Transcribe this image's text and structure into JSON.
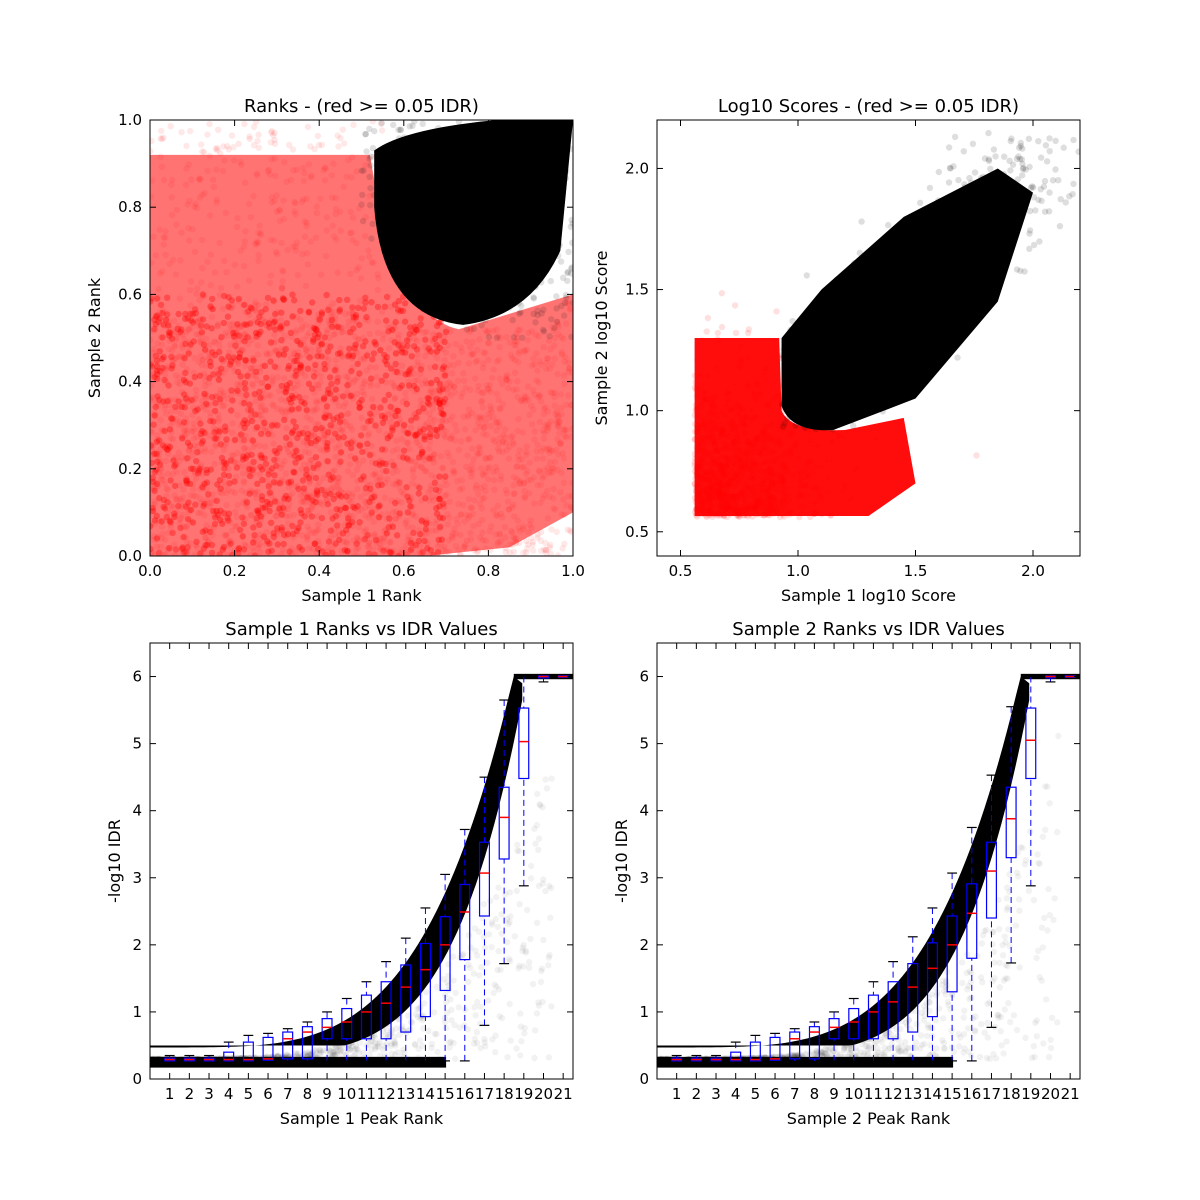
{
  "colors": {
    "significant": "#000000",
    "not_significant": "#ff0000",
    "box": "#0000ff",
    "median": "#ff0000"
  },
  "chart_data": [
    {
      "type": "scatter",
      "title": "Ranks - (red >= 0.05 IDR)",
      "xlabel": "Sample 1 Rank",
      "ylabel": "Sample 2 Rank",
      "xlim": [
        0.0,
        1.0
      ],
      "ylim": [
        0.0,
        1.0
      ],
      "xticks": [
        "0.0",
        "0.2",
        "0.4",
        "0.6",
        "0.8",
        "1.0"
      ],
      "yticks": [
        "0.0",
        "0.2",
        "0.4",
        "0.6",
        "0.8",
        "1.0"
      ],
      "note": "",
      "series": [
        {
          "color": "#ff0000",
          "region": "lower-left L-shaped band, x 0-1.0, y 0-0.95"
        },
        {
          "color": "#000000",
          "region": "upper-right cluster, boundary near (0.53, 0.95) to (0.73, 0.53) to (1.0, 0.62)"
        }
      ]
    },
    {
      "type": "scatter",
      "title": "Log10 Scores - (red >= 0.05 IDR)",
      "xlabel": "Sample 1 log10 Score",
      "ylabel": "Sample 2 log10 Score",
      "xlim": [
        0.4,
        2.2
      ],
      "ylim": [
        0.4,
        2.2
      ],
      "xticks": [
        "0.5",
        "1.0",
        "1.5",
        "2.0"
      ],
      "yticks": [
        "0.5",
        "1.0",
        "1.5",
        "2.0"
      ],
      "series": [
        {
          "color": "#ff0000",
          "region": "x 0.56-1.85, y 0.56-1.9, floor at 0.56"
        },
        {
          "color": "#000000",
          "region": "diagonal band from (0.95, 0.93) to (2.0, 2.0)"
        }
      ]
    },
    {
      "type": "box",
      "title": "Sample 1 Ranks vs IDR Values",
      "xlabel": "Sample 1 Peak Rank",
      "ylabel": "-log10 IDR",
      "ylim": [
        0,
        6.5
      ],
      "categories": [
        "1",
        "2",
        "3",
        "4",
        "5",
        "6",
        "7",
        "8",
        "9",
        "10",
        "11",
        "12",
        "13",
        "14",
        "15",
        "16",
        "17",
        "18",
        "19",
        "20",
        "21"
      ],
      "yticks": [
        "0",
        "1",
        "2",
        "3",
        "4",
        "5",
        "6"
      ],
      "boxes": [
        {
          "q1": 0.27,
          "median": 0.29,
          "q3": 0.31,
          "lo": 0.26,
          "hi": 0.35
        },
        {
          "q1": 0.27,
          "median": 0.29,
          "q3": 0.31,
          "lo": 0.26,
          "hi": 0.35
        },
        {
          "q1": 0.27,
          "median": 0.29,
          "q3": 0.31,
          "lo": 0.26,
          "hi": 0.35
        },
        {
          "q1": 0.27,
          "median": 0.29,
          "q3": 0.4,
          "lo": 0.26,
          "hi": 0.55
        },
        {
          "q1": 0.27,
          "median": 0.29,
          "q3": 0.55,
          "lo": 0.26,
          "hi": 0.65
        },
        {
          "q1": 0.28,
          "median": 0.3,
          "q3": 0.62,
          "lo": 0.26,
          "hi": 0.68
        },
        {
          "q1": 0.3,
          "median": 0.6,
          "q3": 0.7,
          "lo": 0.26,
          "hi": 0.75
        },
        {
          "q1": 0.3,
          "median": 0.7,
          "q3": 0.78,
          "lo": 0.26,
          "hi": 0.85
        },
        {
          "q1": 0.6,
          "median": 0.77,
          "q3": 0.9,
          "lo": 0.27,
          "hi": 1.0
        },
        {
          "q1": 0.6,
          "median": 0.85,
          "q3": 1.05,
          "lo": 0.27,
          "hi": 1.2
        },
        {
          "q1": 0.6,
          "median": 1.0,
          "q3": 1.25,
          "lo": 0.27,
          "hi": 1.45
        },
        {
          "q1": 0.6,
          "median": 1.13,
          "q3": 1.45,
          "lo": 0.27,
          "hi": 1.75
        },
        {
          "q1": 0.7,
          "median": 1.37,
          "q3": 1.7,
          "lo": 0.27,
          "hi": 2.1
        },
        {
          "q1": 0.93,
          "median": 1.63,
          "q3": 2.02,
          "lo": 0.27,
          "hi": 2.55
        },
        {
          "q1": 1.32,
          "median": 2.0,
          "q3": 2.42,
          "lo": 0.27,
          "hi": 3.05
        },
        {
          "q1": 1.78,
          "median": 2.49,
          "q3": 2.9,
          "lo": 0.27,
          "hi": 3.72
        },
        {
          "q1": 2.43,
          "median": 3.07,
          "q3": 3.53,
          "lo": 0.8,
          "hi": 4.5
        },
        {
          "q1": 3.28,
          "median": 3.9,
          "q3": 4.35,
          "lo": 1.72,
          "hi": 5.65
        },
        {
          "q1": 4.48,
          "median": 5.03,
          "q3": 5.53,
          "lo": 2.88,
          "hi": 6.0
        },
        {
          "q1": 5.98,
          "median": 6.0,
          "q3": 6.01,
          "lo": 5.92,
          "hi": 6.02
        },
        {
          "q1": 5.99,
          "median": 6.0,
          "q3": 6.01,
          "lo": 5.98,
          "hi": 6.02
        }
      ]
    },
    {
      "type": "box",
      "title": "Sample 2 Ranks vs IDR Values",
      "xlabel": "Sample 2 Peak Rank",
      "ylabel": "-log10 IDR",
      "ylim": [
        0,
        6.5
      ],
      "categories": [
        "1",
        "2",
        "3",
        "4",
        "5",
        "6",
        "7",
        "8",
        "9",
        "10",
        "11",
        "12",
        "13",
        "14",
        "15",
        "16",
        "17",
        "18",
        "19",
        "20",
        "21"
      ],
      "yticks": [
        "0",
        "1",
        "2",
        "3",
        "4",
        "5",
        "6"
      ],
      "boxes": [
        {
          "q1": 0.27,
          "median": 0.29,
          "q3": 0.31,
          "lo": 0.26,
          "hi": 0.35
        },
        {
          "q1": 0.27,
          "median": 0.29,
          "q3": 0.31,
          "lo": 0.26,
          "hi": 0.35
        },
        {
          "q1": 0.27,
          "median": 0.29,
          "q3": 0.31,
          "lo": 0.26,
          "hi": 0.35
        },
        {
          "q1": 0.27,
          "median": 0.29,
          "q3": 0.4,
          "lo": 0.26,
          "hi": 0.55
        },
        {
          "q1": 0.27,
          "median": 0.29,
          "q3": 0.55,
          "lo": 0.26,
          "hi": 0.65
        },
        {
          "q1": 0.28,
          "median": 0.3,
          "q3": 0.62,
          "lo": 0.26,
          "hi": 0.68
        },
        {
          "q1": 0.3,
          "median": 0.6,
          "q3": 0.7,
          "lo": 0.26,
          "hi": 0.75
        },
        {
          "q1": 0.3,
          "median": 0.7,
          "q3": 0.78,
          "lo": 0.26,
          "hi": 0.85
        },
        {
          "q1": 0.6,
          "median": 0.77,
          "q3": 0.9,
          "lo": 0.27,
          "hi": 1.0
        },
        {
          "q1": 0.6,
          "median": 0.85,
          "q3": 1.05,
          "lo": 0.27,
          "hi": 1.2
        },
        {
          "q1": 0.6,
          "median": 1.0,
          "q3": 1.25,
          "lo": 0.27,
          "hi": 1.45
        },
        {
          "q1": 0.6,
          "median": 1.15,
          "q3": 1.45,
          "lo": 0.27,
          "hi": 1.75
        },
        {
          "q1": 0.7,
          "median": 1.37,
          "q3": 1.72,
          "lo": 0.27,
          "hi": 2.12
        },
        {
          "q1": 0.93,
          "median": 1.65,
          "q3": 2.03,
          "lo": 0.27,
          "hi": 2.55
        },
        {
          "q1": 1.3,
          "median": 2.0,
          "q3": 2.43,
          "lo": 0.27,
          "hi": 3.07
        },
        {
          "q1": 1.8,
          "median": 2.47,
          "q3": 2.91,
          "lo": 0.27,
          "hi": 3.75
        },
        {
          "q1": 2.4,
          "median": 3.1,
          "q3": 3.53,
          "lo": 0.77,
          "hi": 4.53
        },
        {
          "q1": 3.3,
          "median": 3.88,
          "q3": 4.35,
          "lo": 1.73,
          "hi": 5.55
        },
        {
          "q1": 4.48,
          "median": 5.05,
          "q3": 5.53,
          "lo": 2.88,
          "hi": 6.0
        },
        {
          "q1": 5.98,
          "median": 6.0,
          "q3": 6.01,
          "lo": 5.92,
          "hi": 6.02
        },
        {
          "q1": 5.99,
          "median": 6.0,
          "q3": 6.01,
          "lo": 5.98,
          "hi": 6.02
        }
      ]
    }
  ]
}
